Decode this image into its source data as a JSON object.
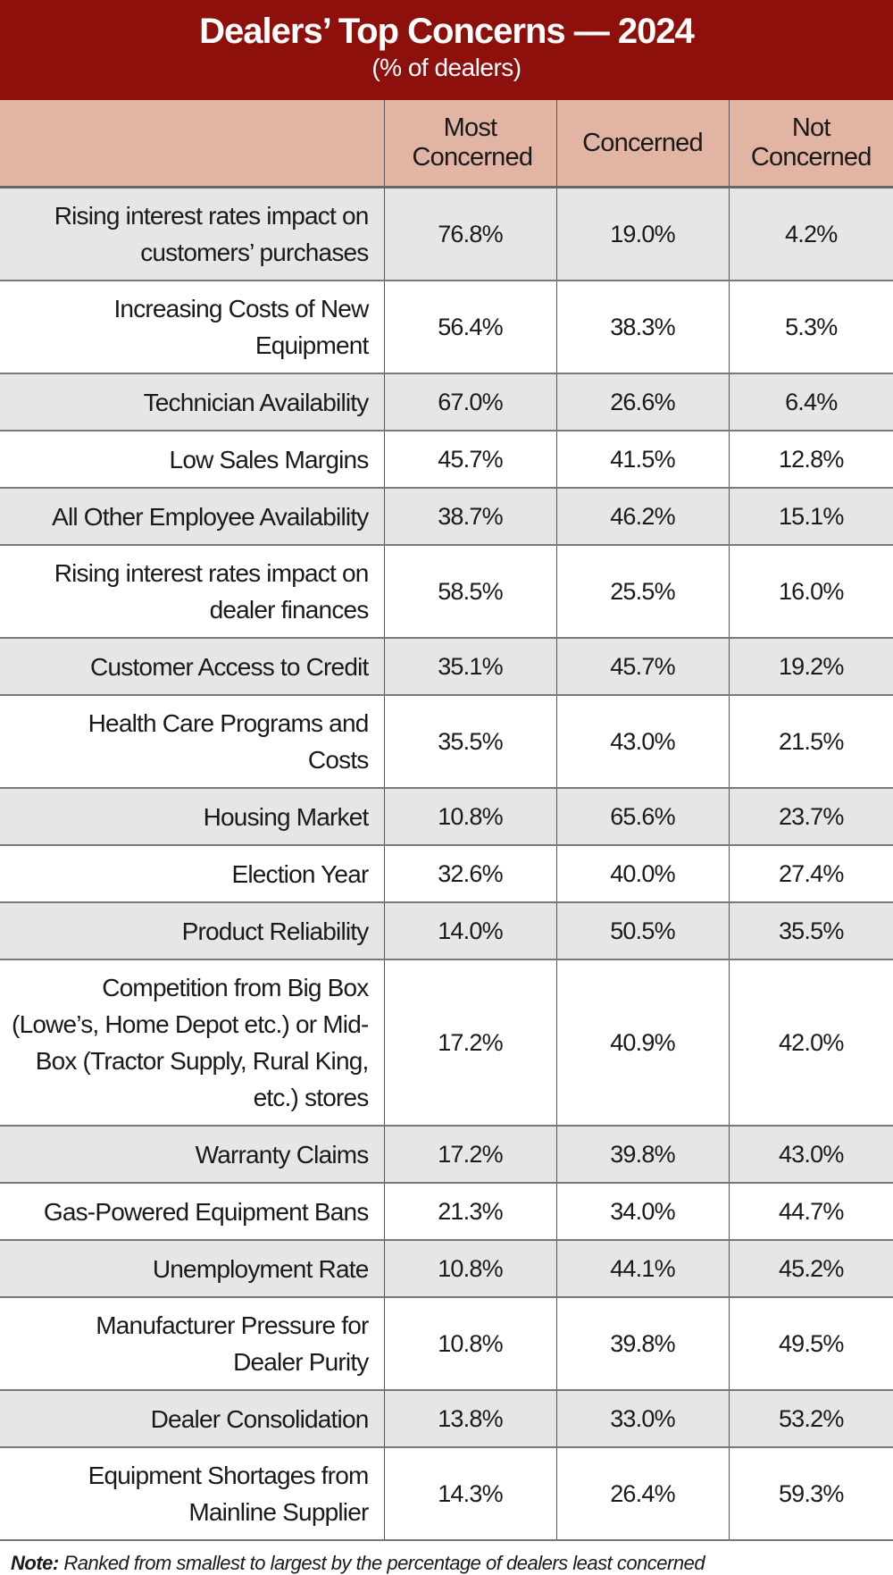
{
  "header": {
    "title": "Dealers’ Top Concerns — 2024",
    "subtitle": "(% of dealers)"
  },
  "columns": [
    "",
    "Most Concerned",
    "Concerned",
    "Not Concerned"
  ],
  "rows": [
    {
      "label": "Rising interest rates impact on customers’ purchases",
      "lines": 2,
      "most": "76.8%",
      "concerned": "19.0%",
      "not": "4.2%"
    },
    {
      "label": "Increasing Costs of New Equipment",
      "lines": 2,
      "most": "56.4%",
      "concerned": "38.3%",
      "not": "5.3%"
    },
    {
      "label": "Technician Availability",
      "lines": 1,
      "most": "67.0%",
      "concerned": "26.6%",
      "not": "6.4%"
    },
    {
      "label": "Low Sales Margins",
      "lines": 1,
      "most": "45.7%",
      "concerned": "41.5%",
      "not": "12.8%"
    },
    {
      "label": "All Other Employee Availability",
      "lines": 1,
      "most": "38.7%",
      "concerned": "46.2%",
      "not": "15.1%"
    },
    {
      "label": "Rising interest rates impact on dealer finances",
      "lines": 2,
      "most": "58.5%",
      "concerned": "25.5%",
      "not": "16.0%"
    },
    {
      "label": "Customer Access to Credit",
      "lines": 1,
      "most": "35.1%",
      "concerned": "45.7%",
      "not": "19.2%"
    },
    {
      "label": "Health Care Programs and Costs",
      "lines": 2,
      "most": "35.5%",
      "concerned": "43.0%",
      "not": "21.5%"
    },
    {
      "label": "Housing Market",
      "lines": 1,
      "most": "10.8%",
      "concerned": "65.6%",
      "not": "23.7%"
    },
    {
      "label": "Election Year",
      "lines": 1,
      "most": "32.6%",
      "concerned": "40.0%",
      "not": "27.4%"
    },
    {
      "label": "Product Reliability",
      "lines": 1,
      "most": "14.0%",
      "concerned": "50.5%",
      "not": "35.5%"
    },
    {
      "label": "Competition from Big Box (Lowe’s, Home Depot etc.) or Mid-Box (Tractor Supply, Rural King, etc.) stores",
      "lines": 4,
      "most": "17.2%",
      "concerned": "40.9%",
      "not": "42.0%"
    },
    {
      "label": "Warranty Claims",
      "lines": 1,
      "most": "17.2%",
      "concerned": "39.8%",
      "not": "43.0%"
    },
    {
      "label": "Gas-Powered Equipment Bans",
      "lines": 1,
      "most": "21.3%",
      "concerned": "34.0%",
      "not": "44.7%"
    },
    {
      "label": "Unemployment Rate",
      "lines": 1,
      "most": "10.8%",
      "concerned": "44.1%",
      "not": "45.2%"
    },
    {
      "label": "Manufacturer Pressure for Dealer Purity",
      "lines": 2,
      "most": "10.8%",
      "concerned": "39.8%",
      "not": "49.5%"
    },
    {
      "label": "Dealer Consolidation",
      "lines": 1,
      "most": "13.8%",
      "concerned": "33.0%",
      "not": "53.2%"
    },
    {
      "label": "Equipment Shortages from Mainline Supplier",
      "lines": 2,
      "most": "14.3%",
      "concerned": "26.4%",
      "not": "59.3%"
    }
  ],
  "note": {
    "label": "Note:",
    "text": " Ranked from smallest to largest by the percentage of dealers least concerned"
  },
  "colors": {
    "banner": "#8e100c",
    "column_header": "#e2b4a3",
    "alt_row": "#e6e6e8"
  }
}
